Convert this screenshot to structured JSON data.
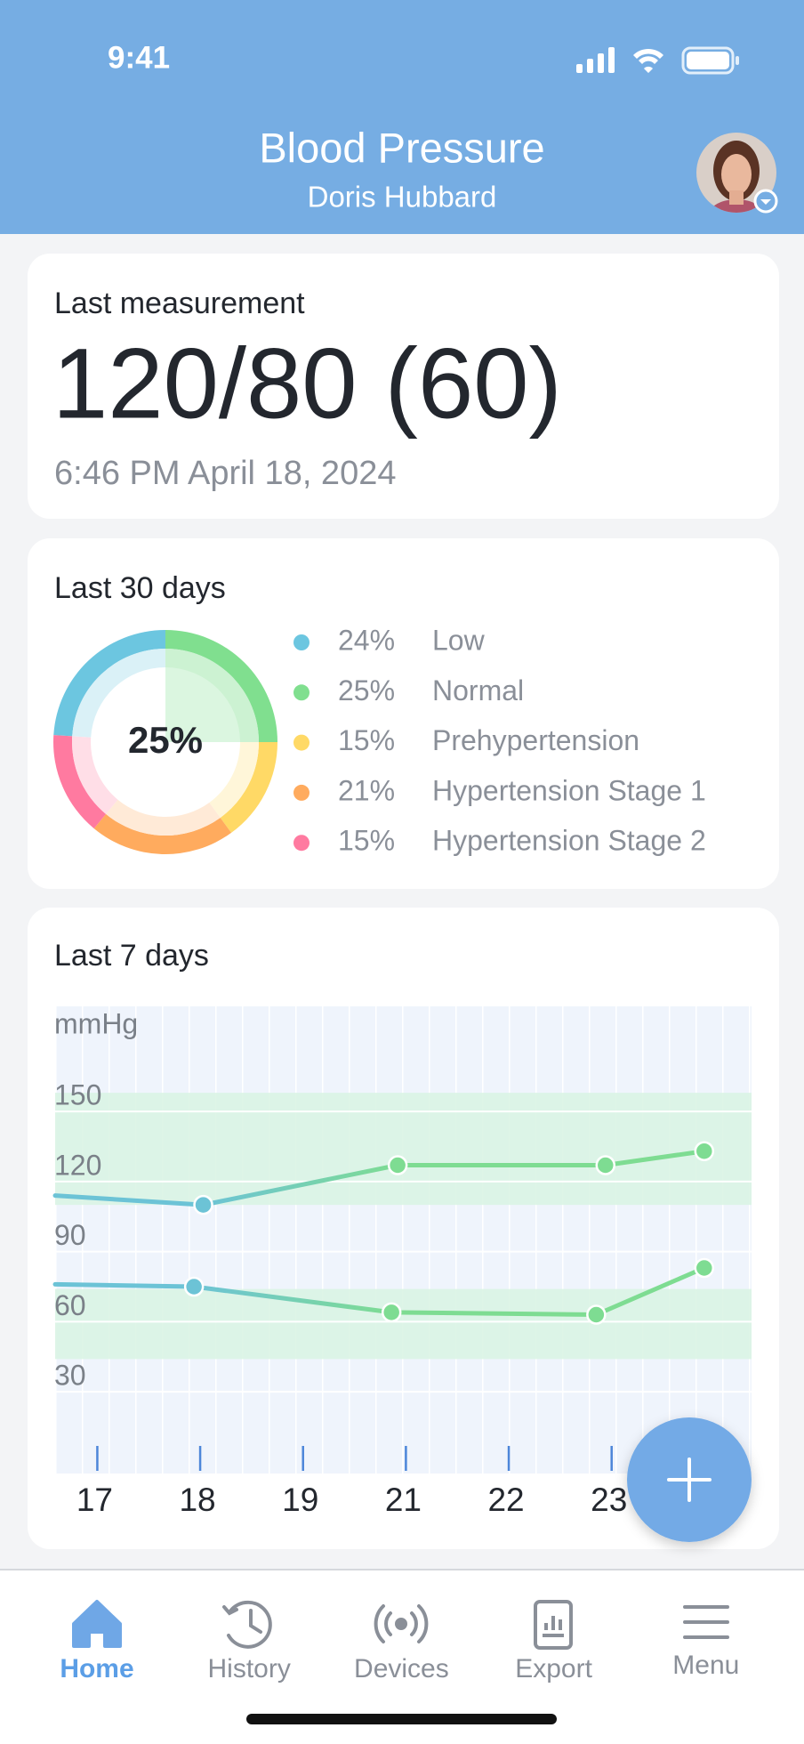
{
  "status_bar": {
    "time": "9:41"
  },
  "header": {
    "title": "Blood Pressure",
    "user": "Doris Hubbard"
  },
  "last_measurement": {
    "title": "Last measurement",
    "reading": "120/80 (60)",
    "timestamp": "6:46 PM April 18, 2024"
  },
  "chart_data": [
    {
      "type": "pie",
      "title": "Last 30 days",
      "categories": [
        "Low",
        "Normal",
        "Prehypertension",
        "Hypertension Stage 1",
        "Hypertension Stage 2"
      ],
      "values": [
        24,
        25,
        15,
        21,
        15
      ],
      "value_labels": [
        "24%",
        "25%",
        "15%",
        "21%",
        "15%"
      ],
      "colors": [
        "#6cc6e0",
        "#80df8f",
        "#ffd966",
        "#ffab5e",
        "#ff7aa0"
      ],
      "center_label": "25%"
    },
    {
      "type": "line",
      "title": "Last 7 days",
      "ylabel": "mmHg",
      "xlim": [
        -0.41,
        6.36
      ],
      "xticks": [
        {
          "value": 0,
          "label": "17"
        },
        {
          "value": 1,
          "label": "18"
        },
        {
          "value": 2,
          "label": "19"
        },
        {
          "value": 3,
          "label": "21"
        },
        {
          "value": 4,
          "label": "22"
        },
        {
          "value": 5,
          "label": "23"
        }
      ],
      "ylim": [
        -5,
        195
      ],
      "yticks": [
        30,
        60,
        90,
        120,
        150
      ],
      "grid": true,
      "bands": [
        {
          "from": 110,
          "to": 158
        },
        {
          "from": 44,
          "to": 74
        }
      ],
      "band_color": "#d8f3e3",
      "series": [
        {
          "x": [
            -0.41,
            1.03,
            2.92,
            4.94,
            5.9
          ],
          "values": [
            114,
            110,
            127,
            127,
            133
          ],
          "colors": [
            "#6cc3d6",
            "#6cc3d6",
            "#7edc92",
            "#7edc92",
            "#7edc92"
          ]
        },
        {
          "x": [
            -0.41,
            0.94,
            2.86,
            4.85,
            5.9
          ],
          "values": [
            76,
            75,
            64,
            63,
            83
          ],
          "colors": [
            "#6cc3d6",
            "#6cc3d6",
            "#7edc92",
            "#7edc92",
            "#7edc92"
          ]
        }
      ]
    }
  ],
  "tab_bar": {
    "tabs": [
      "Home",
      "History",
      "Devices",
      "Export",
      "Menu"
    ],
    "active": 0
  }
}
